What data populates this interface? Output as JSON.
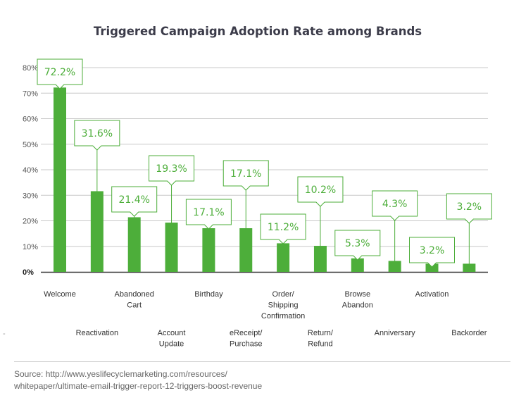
{
  "chart_data": {
    "type": "bar",
    "title": "Triggered Campaign Adoption Rate among Brands",
    "categories": [
      [
        "Welcome"
      ],
      [
        "Reactivation"
      ],
      [
        "Abandoned",
        "Cart"
      ],
      [
        "Account",
        "Update"
      ],
      [
        "Birthday"
      ],
      [
        "eReceipt/",
        "Purchase"
      ],
      [
        "Order/",
        "Shipping",
        "Confirmation"
      ],
      [
        "Return/",
        "Refund"
      ],
      [
        "Browse",
        "Abandon"
      ],
      [
        "Anniversary"
      ],
      [
        "Activation"
      ],
      [
        "Backorder"
      ]
    ],
    "values": [
      72.2,
      31.6,
      21.4,
      19.3,
      17.1,
      17.1,
      11.2,
      10.2,
      5.3,
      4.3,
      3.2,
      3.2
    ],
    "data_labels": [
      "72.2%",
      "31.6%",
      "21.4%",
      "19.3%",
      "17.1%",
      "17.1%",
      "11.2%",
      "10.2%",
      "5.3%",
      "4.3%",
      "3.2%",
      "3.2%"
    ],
    "yticks": [
      "0%",
      "10%",
      "20%",
      "30%",
      "40%",
      "50%",
      "60%",
      "70%",
      "80%"
    ],
    "ylim": [
      0,
      80
    ],
    "grid": true,
    "bar_color": "#4dae3a",
    "grid_color": "#c8c8c8"
  },
  "source_text": "Source: http://www.yeslifecyclemarketing.com/resources/\nwhitepaper/ultimate-email-trigger-report-12-triggers-boost-revenue",
  "edge_mark": "-"
}
